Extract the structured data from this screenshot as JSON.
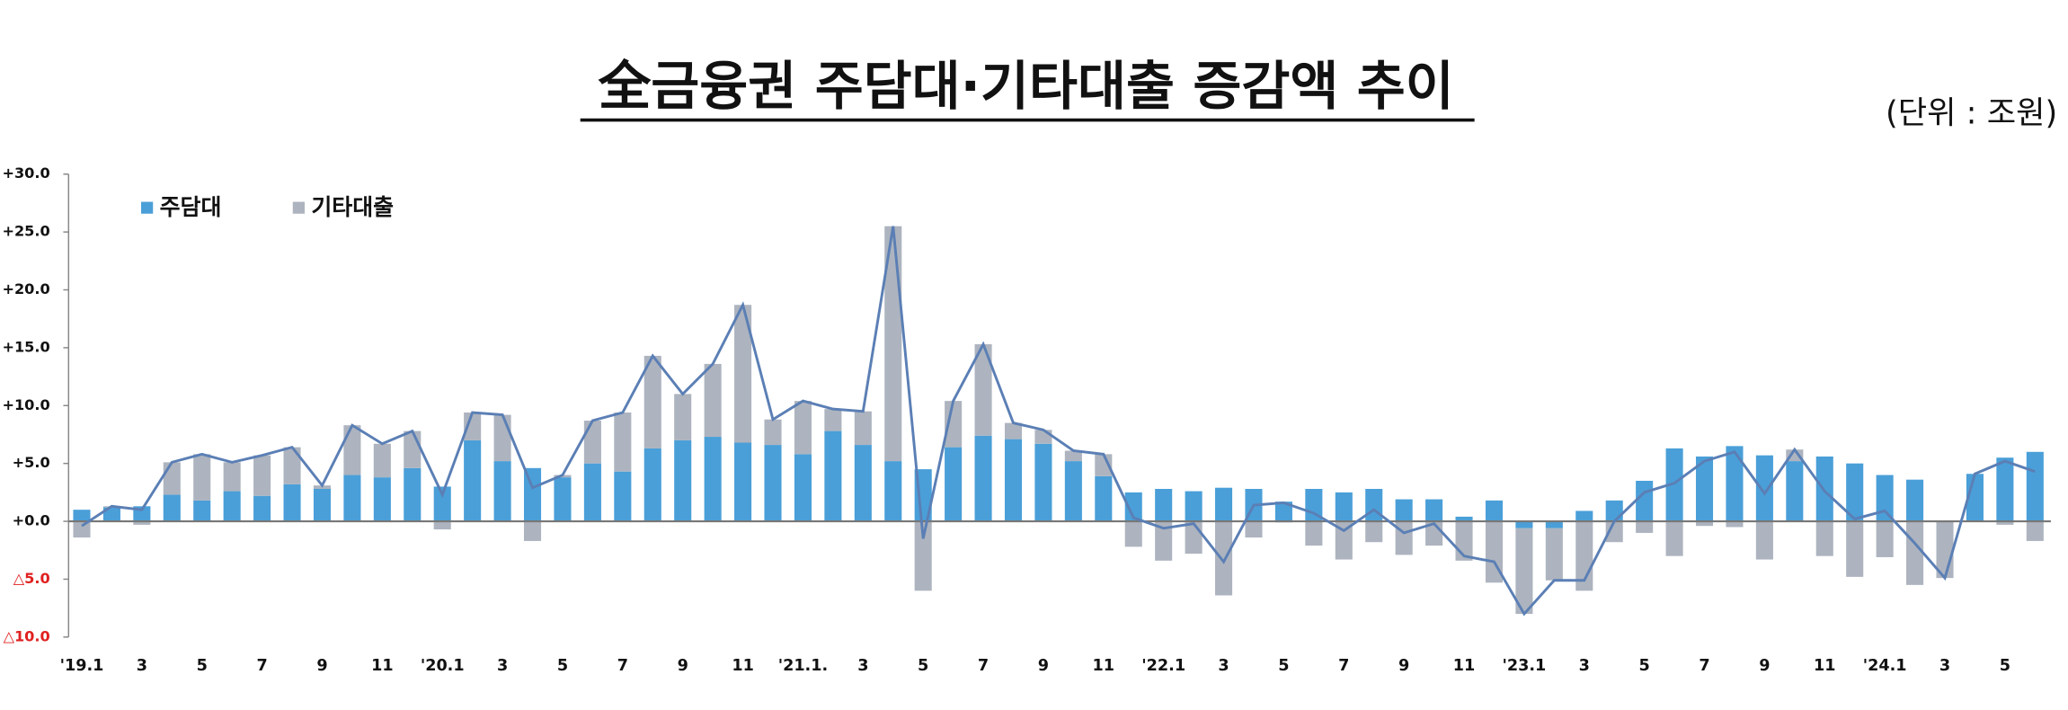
{
  "chart_data": {
    "type": "stacked-bar-line",
    "title": "全금융권 주담대·기타대출 증감액 추이",
    "unit": "(단위 : 조원)",
    "categories": [
      "'19.1",
      null,
      "3",
      null,
      "5",
      null,
      "7",
      null,
      "9",
      null,
      "11",
      null,
      "'20.1",
      null,
      "3",
      null,
      "5",
      null,
      "7",
      null,
      "9",
      null,
      "11",
      null,
      "'21.1.",
      null,
      "3",
      null,
      "5",
      null,
      "7",
      null,
      "9",
      null,
      "11",
      null,
      "'22.1",
      null,
      "3",
      null,
      "5",
      null,
      "7",
      null,
      "9",
      null,
      "11",
      null,
      "'23.1",
      null,
      "3",
      null,
      "5",
      null,
      "7",
      null,
      "9",
      null,
      "11",
      null,
      "'24.1",
      null,
      "3",
      null,
      "5",
      null
    ],
    "series": [
      {
        "name": "주담대",
        "color": "#4a9fd8",
        "values": [
          1.0,
          1.2,
          1.3,
          2.3,
          1.8,
          2.6,
          2.2,
          3.2,
          2.8,
          4.0,
          3.8,
          4.6,
          3.0,
          7.0,
          5.2,
          4.6,
          3.8,
          5.0,
          4.3,
          6.3,
          7.0,
          7.3,
          6.8,
          6.6,
          5.8,
          7.8,
          6.6,
          5.2,
          4.5,
          6.4,
          7.4,
          7.1,
          6.7,
          5.2,
          3.9,
          2.5,
          2.8,
          2.6,
          2.9,
          2.8,
          1.7,
          2.8,
          2.5,
          2.8,
          1.9,
          1.9,
          0.4,
          1.8,
          -0.6,
          -0.6,
          0.9,
          1.8,
          3.5,
          6.3,
          5.6,
          6.5,
          5.7,
          5.2,
          5.6,
          5.0,
          4.0,
          3.6,
          0.0,
          4.1,
          5.5,
          6.0
        ]
      },
      {
        "name": "기타대출",
        "color": "#adb4bf",
        "values": [
          -1.4,
          0.1,
          -0.3,
          2.8,
          4.0,
          2.5,
          3.5,
          3.2,
          0.3,
          4.3,
          2.9,
          3.2,
          -0.7,
          2.4,
          4.0,
          -1.7,
          0.2,
          3.7,
          5.1,
          8.0,
          4.0,
          6.3,
          11.9,
          2.2,
          4.6,
          1.9,
          2.9,
          20.3,
          -6.0,
          4.0,
          7.9,
          1.4,
          1.2,
          0.9,
          1.9,
          -2.2,
          -3.4,
          -2.8,
          -6.4,
          -1.4,
          -0.1,
          -2.1,
          -3.3,
          -1.8,
          -2.9,
          -2.1,
          -3.4,
          -5.3,
          -7.4,
          -4.5,
          -6.0,
          -1.8,
          -1.0,
          -3.0,
          -0.4,
          -0.5,
          -3.3,
          1.0,
          -3.0,
          -4.8,
          -3.1,
          -5.5,
          -4.9,
          0.0,
          -0.3,
          -1.7
        ]
      },
      {
        "color": "#5b7fb5",
        "kind": "line",
        "values": [
          -0.4,
          1.3,
          1.0,
          5.1,
          5.8,
          5.1,
          5.7,
          6.4,
          3.1,
          8.3,
          6.7,
          7.8,
          2.3,
          9.4,
          9.2,
          2.9,
          4.0,
          8.7,
          9.4,
          14.3,
          11.0,
          13.6,
          18.7,
          8.8,
          10.4,
          9.7,
          9.5,
          25.5,
          -1.5,
          10.4,
          15.3,
          8.5,
          7.9,
          6.1,
          5.8,
          0.3,
          -0.6,
          -0.2,
          -3.5,
          1.4,
          1.6,
          0.7,
          -0.8,
          1.0,
          -1.0,
          -0.2,
          -3.0,
          -3.5,
          -8.0,
          -5.1,
          -5.1,
          0.0,
          2.5,
          3.3,
          5.2,
          6.0,
          2.4,
          6.2,
          2.6,
          0.2,
          0.9,
          -1.9,
          -4.9,
          4.1,
          5.2,
          4.3
        ]
      }
    ],
    "ylim": [
      -10,
      30
    ],
    "yticks": [
      {
        "value": 30,
        "label": "+30.0"
      },
      {
        "value": 25,
        "label": "+25.0"
      },
      {
        "value": 20,
        "label": "+20.0"
      },
      {
        "value": 15,
        "label": "+15.0"
      },
      {
        "value": 10,
        "label": "+10.0"
      },
      {
        "value": 5,
        "label": "+5.0"
      },
      {
        "value": 0,
        "label": "+0.0"
      },
      {
        "value": -5,
        "label": "△5.0"
      },
      {
        "value": -10,
        "label": "△10.0"
      }
    ],
    "negative_tick_color": "#e02020",
    "legend": "upper left"
  }
}
